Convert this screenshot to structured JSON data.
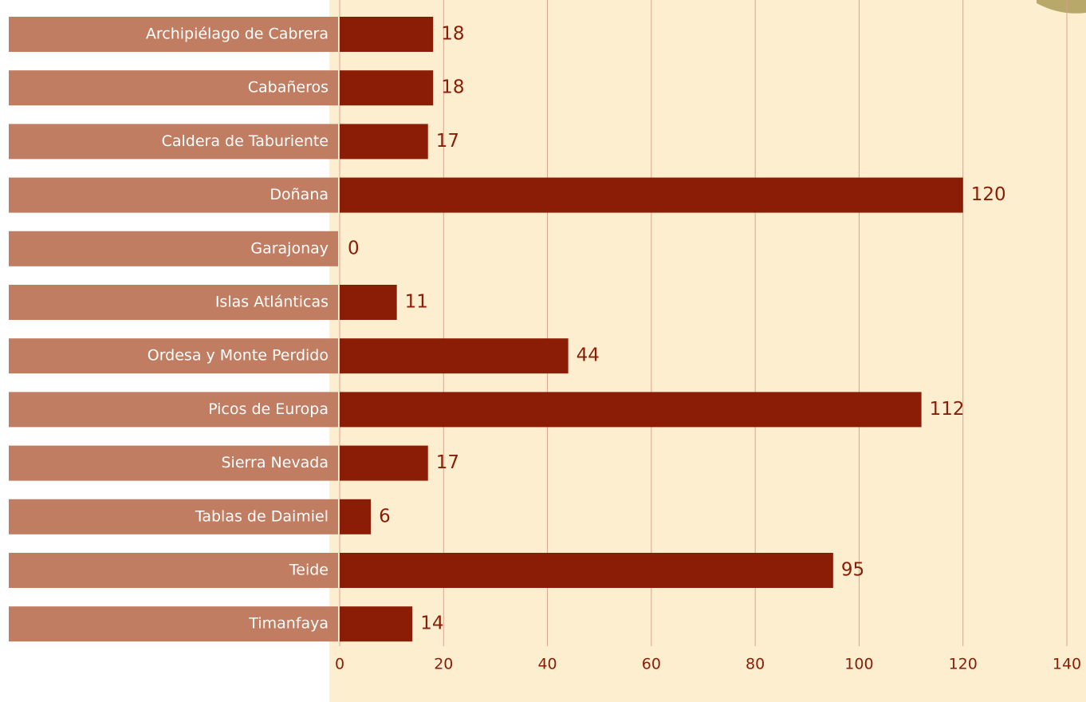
{
  "chart_data": {
    "type": "bar",
    "orientation": "horizontal",
    "categories": [
      "Archipiélago de Cabrera",
      "Cabañeros",
      "Caldera de Taburiente",
      "Doñana",
      "Garajonay",
      "Islas Atlánticas",
      "Ordesa y Monte Perdido",
      "Picos de Europa",
      "Sierra Nevada",
      "Tablas de Daimiel",
      "Teide",
      "Timanfaya"
    ],
    "values": [
      18,
      18,
      17,
      120,
      0,
      11,
      44,
      112,
      17,
      6,
      95,
      14
    ],
    "color": "#8b1c05",
    "label_box_color": "#c17d62",
    "xlim": [
      0,
      140
    ],
    "xticks": [
      0,
      20,
      40,
      60,
      80,
      100,
      120,
      140
    ],
    "grid": true
  }
}
